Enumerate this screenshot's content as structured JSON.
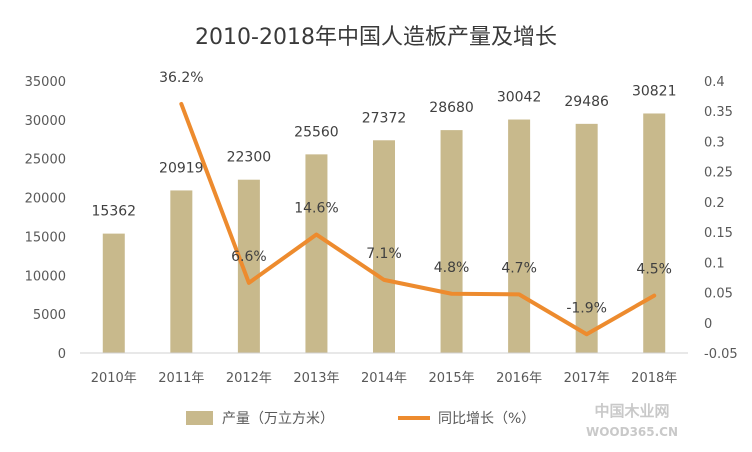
{
  "chart_data": {
    "type": "bar",
    "title": "2010-2018年中国人造板产量及增长",
    "categories": [
      "2010年",
      "2011年",
      "2012年",
      "2013年",
      "2014年",
      "2015年",
      "2016年",
      "2017年",
      "2018年"
    ],
    "series": [
      {
        "name": "产量（万立方米）",
        "type": "bar",
        "axis": "left",
        "color": "#c8b98c",
        "values": [
          15362,
          20919,
          22300,
          25560,
          27372,
          28680,
          30042,
          29486,
          30821
        ],
        "labels": [
          "15362",
          "20919",
          "22300",
          "25560",
          "27372",
          "28680",
          "30042",
          "29486",
          "30821"
        ]
      },
      {
        "name": "同比增长（%）",
        "type": "line",
        "axis": "right",
        "color": "#ed8b2e",
        "x": [
          "2011年",
          "2012年",
          "2013年",
          "2014年",
          "2015年",
          "2016年",
          "2017年",
          "2018年"
        ],
        "values": [
          0.362,
          0.066,
          0.146,
          0.071,
          0.048,
          0.047,
          -0.019,
          0.045
        ],
        "labels": [
          "36.2%",
          "6.6%",
          "14.6%",
          "7.1%",
          "4.8%",
          "4.7%",
          "-1.9%",
          "4.5%"
        ]
      }
    ],
    "left_axis": {
      "ylim": [
        0,
        35000
      ],
      "ticks": [
        "0",
        "5000",
        "10000",
        "15000",
        "20000",
        "25000",
        "30000",
        "35000"
      ]
    },
    "right_axis": {
      "ylim": [
        -0.05,
        0.4
      ],
      "ticks": [
        "-0.05",
        "0",
        "0.05",
        "0.1",
        "0.15",
        "0.2",
        "0.25",
        "0.3",
        "0.35",
        "0.4"
      ]
    },
    "grid": false,
    "legend_position": "bottom"
  },
  "watermark": {
    "text_cn": "中国木业网",
    "text_en": "WOOD365.CN"
  }
}
